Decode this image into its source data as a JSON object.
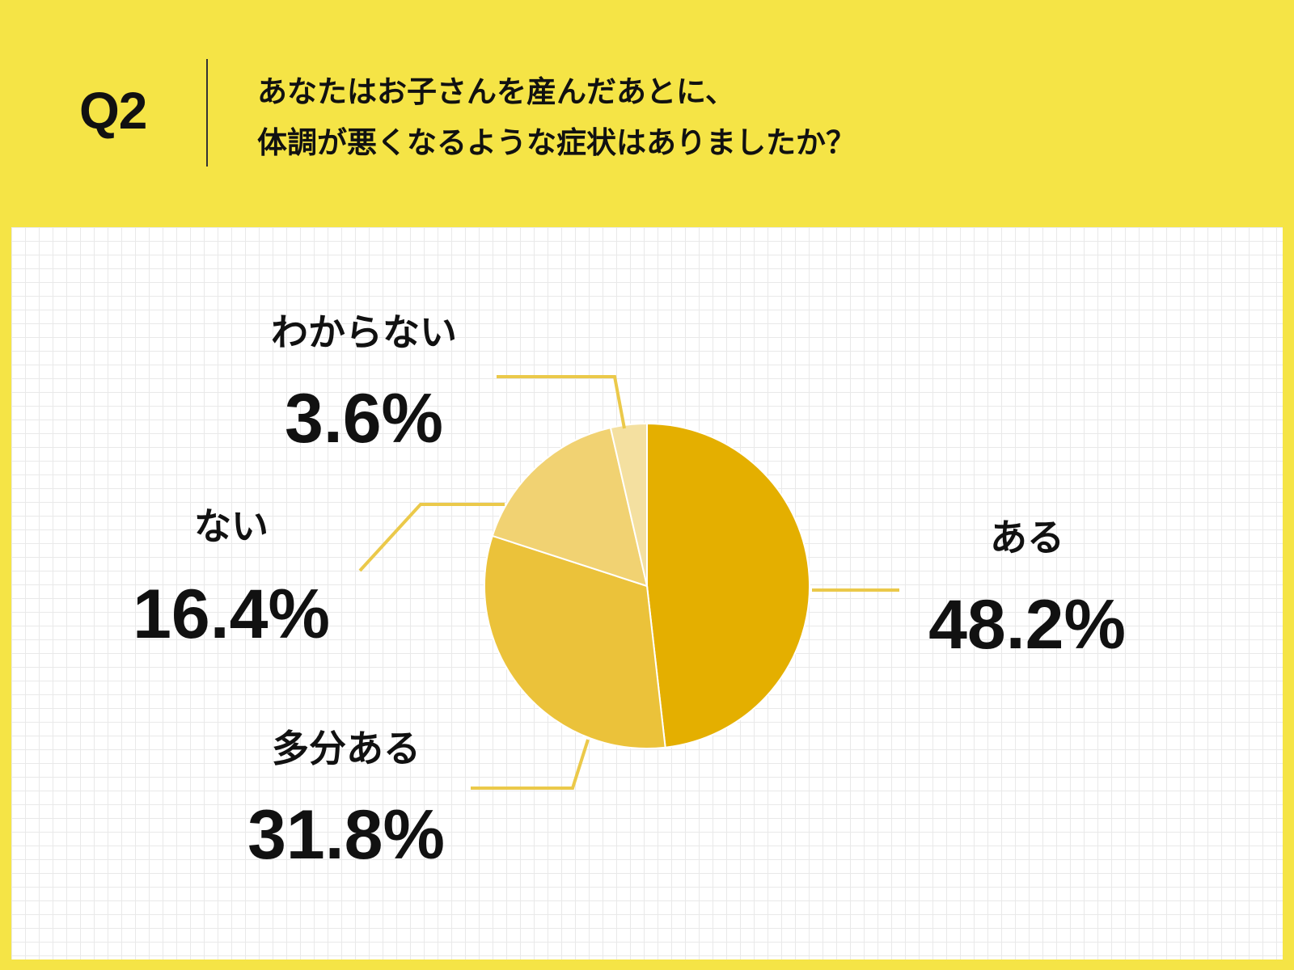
{
  "header": {
    "question_label": "Q2",
    "question_lines": [
      "あなたはお子さんを産んだあとに、",
      "体調が悪くなるような症状はありましたか？"
    ]
  },
  "colors": {
    "background": "#F5E446",
    "slices": [
      "#E4AF00",
      "#EBC23A",
      "#F1D272",
      "#F4E0A0"
    ],
    "leader": "#EBC94A"
  },
  "chart_data": {
    "type": "pie",
    "title": "",
    "start_angle": "12 o'clock",
    "direction": "clockwise",
    "slices": [
      {
        "label": "ある",
        "value": 48.2,
        "display": "48.2%"
      },
      {
        "label": "多分ある",
        "value": 31.8,
        "display": "31.8%"
      },
      {
        "label": "ない",
        "value": 16.4,
        "display": "16.4%"
      },
      {
        "label": "わからない",
        "value": 3.6,
        "display": "3.6%"
      }
    ]
  }
}
